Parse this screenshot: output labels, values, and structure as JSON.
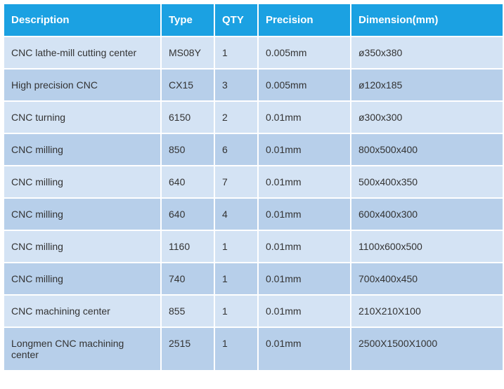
{
  "table": {
    "header_bg": "#1ba1e2",
    "header_color": "#ffffff",
    "row_odd_bg": "#d4e3f4",
    "row_even_bg": "#b7cfea",
    "cell_text_color": "#333333",
    "columns": [
      {
        "key": "desc",
        "label": "Description"
      },
      {
        "key": "type",
        "label": "Type"
      },
      {
        "key": "qty",
        "label": "QTY"
      },
      {
        "key": "prec",
        "label": "Precision"
      },
      {
        "key": "dim",
        "label": "Dimension(mm)"
      }
    ],
    "rows": [
      {
        "desc": "CNC lathe-mill cutting center",
        "type": "MS08Y",
        "qty": "1",
        "prec": "0.005mm",
        "dim": "ø350x380"
      },
      {
        "desc": "High precision CNC",
        "type": "CX15",
        "qty": "3",
        "prec": "0.005mm",
        "dim": "ø120x185"
      },
      {
        "desc": "CNC turning",
        "type": "6150",
        "qty": "2",
        "prec": "0.01mm",
        "dim": "ø300x300"
      },
      {
        "desc": "CNC milling",
        "type": "850",
        "qty": "6",
        "prec": "0.01mm",
        "dim": "800x500x400"
      },
      {
        "desc": "CNC milling",
        "type": "640",
        "qty": "7",
        "prec": "0.01mm",
        "dim": "500x400x350"
      },
      {
        "desc": "CNC milling",
        "type": "640",
        "qty": "4",
        "prec": "0.01mm",
        "dim": "600x400x300"
      },
      {
        "desc": "CNC milling",
        "type": "1160",
        "qty": "1",
        "prec": "0.01mm",
        "dim": "1100x600x500"
      },
      {
        "desc": "CNC milling",
        "type": "740",
        "qty": "1",
        "prec": "0.01mm",
        "dim": "700x400x450"
      },
      {
        "desc": "CNC machining center",
        "type": "855",
        "qty": "1",
        "prec": "0.01mm",
        "dim": "210X210X100"
      },
      {
        "desc": "Longmen CNC machining center",
        "type": "2515",
        "qty": "1",
        "prec": "0.01mm",
        "dim": "2500X1500X1000"
      }
    ]
  }
}
